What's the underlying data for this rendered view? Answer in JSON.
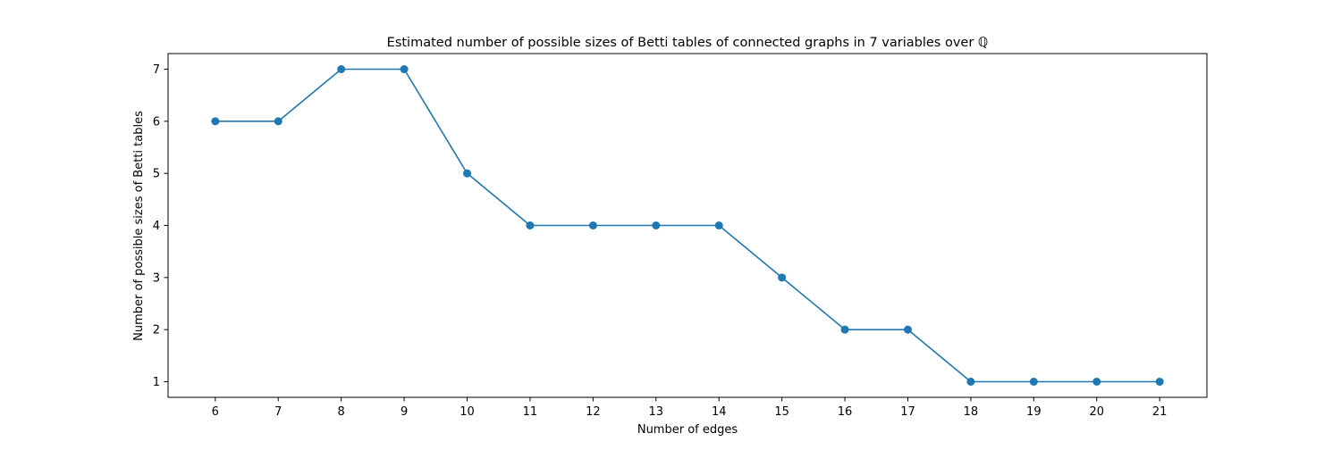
{
  "chart_data": {
    "type": "line",
    "title": "Estimated number of possible sizes of Betti tables of connected graphs in 7 variables over ℚ",
    "xlabel": "Number of edges",
    "ylabel": "Number of possible sizes of Betti tables",
    "x": [
      6,
      7,
      8,
      9,
      10,
      11,
      12,
      13,
      14,
      15,
      16,
      17,
      18,
      19,
      20,
      21
    ],
    "series": [
      {
        "values": [
          6,
          6,
          7,
          7,
          5,
          4,
          4,
          4,
          4,
          3,
          2,
          2,
          1,
          1,
          1,
          1
        ],
        "color": "#1f77b4",
        "marker": "circle"
      }
    ],
    "xlim": [
      5.25,
      21.75
    ],
    "ylim": [
      0.7,
      7.3
    ],
    "xticks": [
      6,
      7,
      8,
      9,
      10,
      11,
      12,
      13,
      14,
      15,
      16,
      17,
      18,
      19,
      20,
      21
    ],
    "yticks": [
      1,
      2,
      3,
      4,
      5,
      6,
      7
    ],
    "grid": false,
    "legend": "none"
  }
}
